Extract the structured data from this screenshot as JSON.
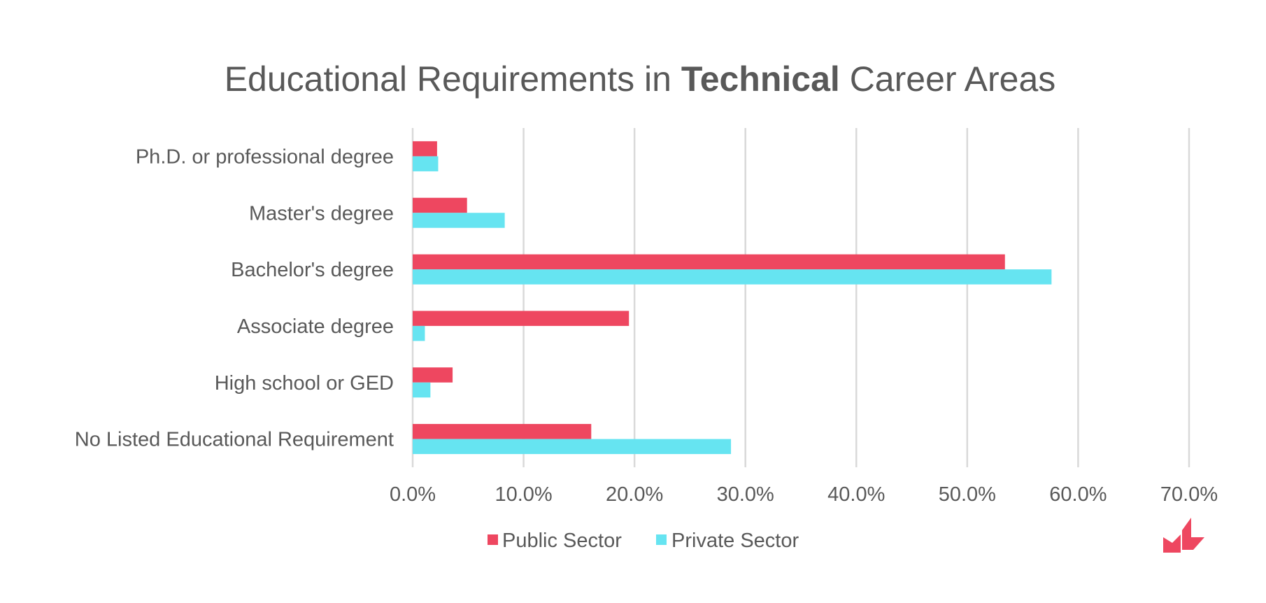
{
  "chart_data": {
    "type": "bar",
    "orientation": "horizontal",
    "title": {
      "prefix": "Educational Requirements in ",
      "emphasis": "Technical",
      "suffix": " Career Areas"
    },
    "categories": [
      "Ph.D. or professional degree",
      "Master's degree",
      "Bachelor's degree",
      "Associate degree",
      "High school or GED",
      "No Listed Educational Requirement"
    ],
    "series": [
      {
        "name": "Public Sector",
        "color": "#ee4760",
        "values": [
          2.2,
          4.9,
          53.4,
          19.5,
          3.6,
          16.1
        ]
      },
      {
        "name": "Private Sector",
        "color": "#66e4f1",
        "values": [
          2.3,
          8.3,
          57.6,
          1.1,
          1.6,
          28.7
        ]
      }
    ],
    "xlim": [
      0,
      70
    ],
    "xticks": [
      "0.0%",
      "10.0%",
      "20.0%",
      "30.0%",
      "40.0%",
      "50.0%",
      "60.0%",
      "70.0%"
    ],
    "xlabel": "",
    "ylabel": "",
    "grid": "vertical",
    "legend_position": "bottom"
  },
  "logo": {
    "name": "brand-logo-icon",
    "color": "#ee4760"
  }
}
